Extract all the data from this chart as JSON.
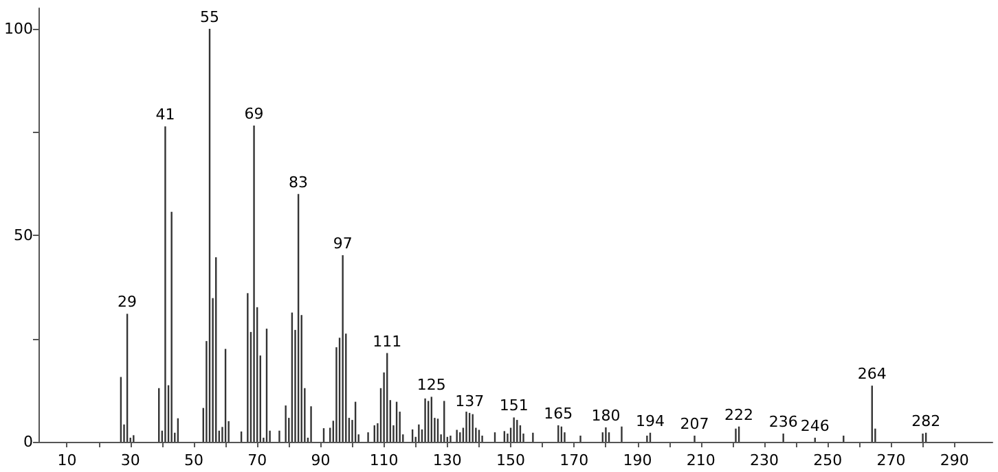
{
  "chart_data": {
    "type": "bar",
    "color": "#333333",
    "x": [
      27,
      28,
      29,
      30,
      31,
      39,
      40,
      41,
      42,
      43,
      44,
      45,
      53,
      54,
      55,
      56,
      57,
      58,
      59,
      60,
      61,
      65,
      67,
      68,
      69,
      70,
      71,
      72,
      73,
      74,
      77,
      79,
      80,
      81,
      82,
      83,
      84,
      85,
      86,
      87,
      91,
      93,
      94,
      95,
      96,
      97,
      98,
      99,
      100,
      101,
      102,
      105,
      107,
      108,
      109,
      110,
      111,
      112,
      113,
      114,
      115,
      116,
      119,
      120,
      121,
      122,
      123,
      124,
      125,
      126,
      127,
      128,
      129,
      130,
      131,
      133,
      134,
      135,
      136,
      137,
      138,
      139,
      140,
      141,
      145,
      148,
      149,
      150,
      151,
      152,
      153,
      154,
      157,
      165,
      166,
      167,
      172,
      179,
      180,
      181,
      185,
      193,
      194,
      208,
      221,
      222,
      236,
      246,
      255,
      264,
      265,
      280,
      281
    ],
    "values": [
      15.7,
      4.2,
      31,
      1,
      1.6,
      13,
      2.7,
      76.4,
      13.7,
      55.7,
      2.2,
      5.7,
      8.2,
      24.4,
      100,
      34.8,
      44.7,
      2.7,
      3.6,
      22.5,
      5,
      2.5,
      36,
      26.6,
      76.6,
      32.6,
      20.9,
      1,
      27.4,
      2.7,
      2.7,
      8.8,
      5.8,
      31.3,
      27.1,
      60,
      30.7,
      13,
      1,
      8.6,
      3.3,
      3.4,
      5.1,
      22.9,
      25.2,
      45.2,
      26.2,
      5.8,
      5.3,
      9.7,
      1.8,
      2.3,
      4,
      4.5,
      13,
      16.8,
      21.5,
      10.1,
      4,
      9.7,
      7.3,
      1.8,
      3,
      1.2,
      4.2,
      3,
      10.5,
      9.9,
      10.9,
      5.8,
      5.6,
      1.8,
      9.9,
      1.2,
      1.5,
      2.9,
      2.3,
      3.4,
      7.3,
      7,
      6.7,
      3.4,
      2.9,
      1.5,
      2.3,
      2.6,
      2,
      3.4,
      5.9,
      5.3,
      4,
      2,
      2.2,
      4,
      3.7,
      2.3,
      1.5,
      2.3,
      3.5,
      2.3,
      3.7,
      1.5,
      2.2,
      1.5,
      3.2,
      3.7,
      2,
      1,
      1.5,
      13.6,
      3.2,
      2,
      2.2
    ],
    "xlim": [
      1,
      302
    ],
    "xticks": [
      10,
      {
        "value": 20,
        "label": null
      },
      30,
      {
        "value": 40,
        "label": null
      },
      50,
      {
        "value": 60,
        "label": null
      },
      70,
      {
        "value": 80,
        "label": null
      },
      90,
      {
        "value": 100,
        "label": null
      },
      110,
      {
        "value": 120,
        "label": null
      },
      130,
      {
        "value": 140,
        "label": null
      },
      150,
      {
        "value": 160,
        "label": null
      },
      170,
      {
        "value": 180,
        "label": null
      },
      190,
      {
        "value": 200,
        "label": null
      },
      210,
      {
        "value": 220,
        "label": null
      },
      230,
      {
        "value": 240,
        "label": null
      },
      250,
      {
        "value": 260,
        "label": null
      },
      270,
      {
        "value": 280,
        "label": null
      },
      290
    ],
    "ylim": [
      0,
      105
    ],
    "yticks": [
      0,
      {
        "value": 25,
        "label": null
      },
      50,
      {
        "value": 75,
        "label": null
      },
      100
    ],
    "grid": false,
    "annotations": [
      {
        "text": "29",
        "x": 29,
        "y": 31
      },
      {
        "text": "41",
        "x": 41,
        "y": 76.4
      },
      {
        "text": "55",
        "x": 55,
        "y": 100
      },
      {
        "text": "69",
        "x": 69,
        "y": 76.6
      },
      {
        "text": "83",
        "x": 83,
        "y": 60
      },
      {
        "text": "97",
        "x": 97,
        "y": 45.2
      },
      {
        "text": "111",
        "x": 111,
        "y": 21.5
      },
      {
        "text": "125",
        "x": 125,
        "y": 10.9
      },
      {
        "text": "137",
        "x": 137,
        "y": 7
      },
      {
        "text": "151",
        "x": 151,
        "y": 5.9
      },
      {
        "text": "165",
        "x": 165,
        "y": 4
      },
      {
        "text": "180",
        "x": 180,
        "y": 3.5
      },
      {
        "text": "194",
        "x": 194,
        "y": 2.2
      },
      {
        "text": "207",
        "x": 208,
        "y": 1.5
      },
      {
        "text": "222",
        "x": 222,
        "y": 3.7
      },
      {
        "text": "236",
        "x": 236,
        "y": 2
      },
      {
        "text": "246",
        "x": 246,
        "y": 1
      },
      {
        "text": "264",
        "x": 264,
        "y": 13.6
      },
      {
        "text": "282",
        "x": 281,
        "y": 2.2
      }
    ]
  }
}
